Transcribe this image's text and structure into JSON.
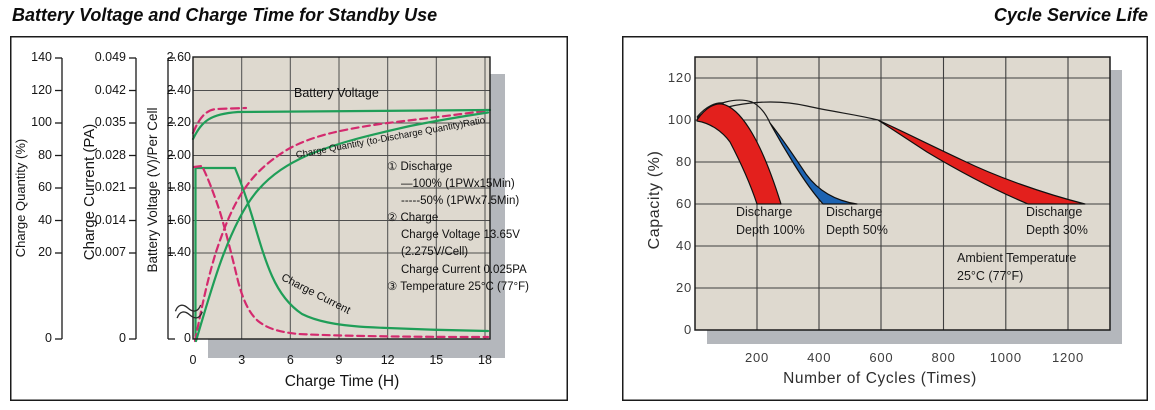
{
  "left": {
    "title": "Battery Voltage and Charge Time for Standby Use",
    "axis_titles": {
      "quantity": "Charge Quantity (%)",
      "current": "Charge Current (PA)",
      "voltage": "Battery Voltage (V)/Per Cell"
    },
    "y_ticks": {
      "quantity": [
        "140",
        "120",
        "100",
        "80",
        "60",
        "40",
        "20",
        "0"
      ],
      "current": [
        "0.049",
        "0.042",
        "0.035",
        "0.028",
        "0.021",
        "0.014",
        "0.007",
        "0"
      ],
      "voltage": [
        "2.60",
        "2.40",
        "2.20",
        "2.00",
        "1.80",
        "1.60",
        "1.40",
        "0"
      ]
    },
    "x_ticks": [
      "0",
      "3",
      "6",
      "9",
      "12",
      "15",
      "18"
    ],
    "x_label": "Charge Time (H)",
    "curve_labels": {
      "battery_voltage": "Battery Voltage",
      "ratio": "Charge Quantity (to-Discharge Quantity)Ratio",
      "current": "Charge Current"
    },
    "note": {
      "lines": [
        "① Discharge",
        "—100% (1PWx15Min)",
        "-----50% (1PWx7.5Min)",
        "② Charge",
        "Charge Voltage 13.65V",
        "(2.275V/Cell)",
        "Charge Current 0.025PA",
        "③ Temperature 25°C (77°F)"
      ]
    }
  },
  "right": {
    "title": "Cycle Service Life",
    "y_label": "Capacity (%)",
    "x_label": "Number of Cycles (Times)",
    "y_ticks": [
      "120",
      "100",
      "80",
      "60",
      "40",
      "20",
      "0"
    ],
    "x_ticks": [
      "200",
      "400",
      "600",
      "800",
      "1000",
      "1200"
    ],
    "labels": {
      "depth100": "Discharge\nDepth 100%",
      "depth50": "Discharge\nDepth 50%",
      "depth30": "Discharge\nDepth 30%",
      "ambient": "Ambient Temperature\n25°C (77°F)"
    }
  },
  "colors": {
    "green_curve": "#1f9e58",
    "pink_curve": "#d42a6e",
    "band_red": "#e3201d",
    "band_blue": "#1c63b2",
    "plot_bg": "#ded9cf",
    "shadow": "#b4b7bc"
  },
  "chart_data": [
    {
      "type": "line",
      "title": "Battery Voltage and Charge Time for Standby Use",
      "xlabel": "Charge Time (H)",
      "xlim": [
        0,
        18
      ],
      "x_ticks": [
        0,
        3,
        6,
        9,
        12,
        15,
        18
      ],
      "y_axes": [
        {
          "label": "Charge Quantity (%)",
          "ticks": [
            0,
            20,
            40,
            60,
            80,
            100,
            120,
            140
          ],
          "axis_break_above_zero": true
        },
        {
          "label": "Charge Current (PA)",
          "ticks": [
            0,
            0.007,
            0.014,
            0.021,
            0.028,
            0.035,
            0.042,
            0.049
          ],
          "axis_break_above_zero": true
        },
        {
          "label": "Battery Voltage (V)/Per Cell",
          "ticks": [
            0,
            1.4,
            1.6,
            1.8,
            2.0,
            2.2,
            2.4,
            2.6
          ],
          "axis_break_above_zero": true
        }
      ],
      "series": [
        {
          "name": "Battery Voltage — 100% discharge",
          "style": "solid",
          "color": "#1f9e58",
          "y_axis": "Battery Voltage (V)/Per Cell",
          "x": [
            0,
            0.5,
            1,
            1.5,
            2,
            3,
            6,
            9,
            12,
            15,
            18
          ],
          "y": [
            2.12,
            2.18,
            2.22,
            2.25,
            2.26,
            2.27,
            2.27,
            2.27,
            2.27,
            2.27,
            2.28
          ]
        },
        {
          "name": "Battery Voltage — 50% discharge",
          "style": "dashed",
          "color": "#d42a6e",
          "y_axis": "Battery Voltage (V)/Per Cell",
          "x": [
            0,
            0.4,
            0.8,
            1.2,
            1.6,
            2.2,
            2.8
          ],
          "y": [
            2.14,
            2.21,
            2.25,
            2.27,
            2.28,
            2.28,
            2.28
          ]
        },
        {
          "name": "Charge Quantity (to-Discharge Quantity) Ratio — 100% discharge",
          "style": "solid",
          "color": "#1f9e58",
          "y_axis": "Charge Quantity (%)",
          "x": [
            0.2,
            0.5,
            1,
            1.5,
            2,
            2.5,
            3,
            4,
            5,
            6,
            8,
            10,
            12,
            15,
            18
          ],
          "y": [
            0,
            14,
            30,
            45,
            58,
            68,
            76,
            85,
            90,
            94,
            98,
            101,
            103,
            105,
            107
          ]
        },
        {
          "name": "Charge Quantity (to-Discharge Quantity) Ratio — 50% discharge",
          "style": "dashed",
          "color": "#d42a6e",
          "y_axis": "Charge Quantity (%)",
          "x": [
            0.1,
            0.4,
            0.8,
            1.2,
            1.6,
            2,
            2.5,
            3,
            4,
            6,
            9,
            12,
            15,
            18
          ],
          "y": [
            0,
            17,
            36,
            53,
            66,
            76,
            85,
            90,
            96,
            102,
            105,
            107,
            108,
            108
          ]
        },
        {
          "name": "Charge Current — 100% discharge",
          "style": "solid",
          "color": "#1f9e58",
          "y_axis": "Charge Current (PA)",
          "x": [
            0,
            2.6,
            3,
            3.5,
            4,
            5,
            6,
            8,
            10,
            14,
            18
          ],
          "y": [
            0.025,
            0.025,
            0.02,
            0.015,
            0.011,
            0.008,
            0.006,
            0.004,
            0.003,
            0.0025,
            0.002
          ]
        },
        {
          "name": "Charge Current — 50% discharge",
          "style": "dashed",
          "color": "#d42a6e",
          "y_axis": "Charge Current (PA)",
          "x": [
            0,
            0.9,
            1.5,
            2,
            2.5,
            3,
            4,
            5,
            7,
            10,
            14,
            18
          ],
          "y": [
            0.025,
            0.025,
            0.018,
            0.012,
            0.008,
            0.006,
            0.004,
            0.003,
            0.0022,
            0.0018,
            0.0016,
            0.0015
          ]
        }
      ],
      "annotations": [
        "① Discharge",
        "—100% (1PWx15Min)",
        "-----50% (1PWx7.5Min)",
        "② Charge",
        "Charge Voltage 13.65V",
        "(2.275V/Cell)",
        "Charge Current 0.025PA",
        "③ Temperature 25°C (77°F)"
      ]
    },
    {
      "type": "area",
      "title": "Cycle Service Life",
      "xlabel": "Number of Cycles (Times)",
      "ylabel": "Capacity (%)",
      "xlim": [
        0,
        1330
      ],
      "ylim": [
        0,
        130
      ],
      "x_ticks": [
        200,
        400,
        600,
        800,
        1000,
        1200
      ],
      "y_ticks": [
        0,
        20,
        40,
        60,
        80,
        100,
        120
      ],
      "bands": [
        {
          "name": "Discharge Depth 100%",
          "color": "#e3201d",
          "upper": [
            [
              0,
              101
            ],
            [
              60,
              107
            ],
            [
              120,
              100
            ],
            [
              180,
              82
            ],
            [
              276,
              60
            ]
          ],
          "lower": [
            [
              0,
              100
            ],
            [
              70,
              99
            ],
            [
              120,
              88
            ],
            [
              170,
              72
            ],
            [
              200,
              60
            ]
          ]
        },
        {
          "name": "Discharge Depth 50%",
          "color": "#1c63b2",
          "upper": [
            [
              0,
              101
            ],
            [
              100,
              107
            ],
            [
              180,
              104
            ],
            [
              240,
              97
            ],
            [
              320,
              86
            ],
            [
              420,
              72
            ],
            [
              520,
              60
            ]
          ],
          "lower": [
            [
              240,
              97
            ],
            [
              290,
              88
            ],
            [
              350,
              75
            ],
            [
              410,
              60
            ]
          ]
        },
        {
          "name": "Discharge Depth 30%",
          "color": "#e3201d",
          "upper": [
            [
              0,
              101
            ],
            [
              160,
              106
            ],
            [
              300,
              105
            ],
            [
              500,
              100
            ],
            [
              700,
              92
            ],
            [
              900,
              81
            ],
            [
              1100,
              68
            ],
            [
              1250,
              60
            ]
          ],
          "lower": [
            [
              590,
              100
            ],
            [
              700,
              92
            ],
            [
              820,
              84
            ],
            [
              950,
              74
            ],
            [
              1070,
              60
            ]
          ]
        }
      ],
      "note": "Ambient Temperature 25°C (77°F)"
    }
  ]
}
